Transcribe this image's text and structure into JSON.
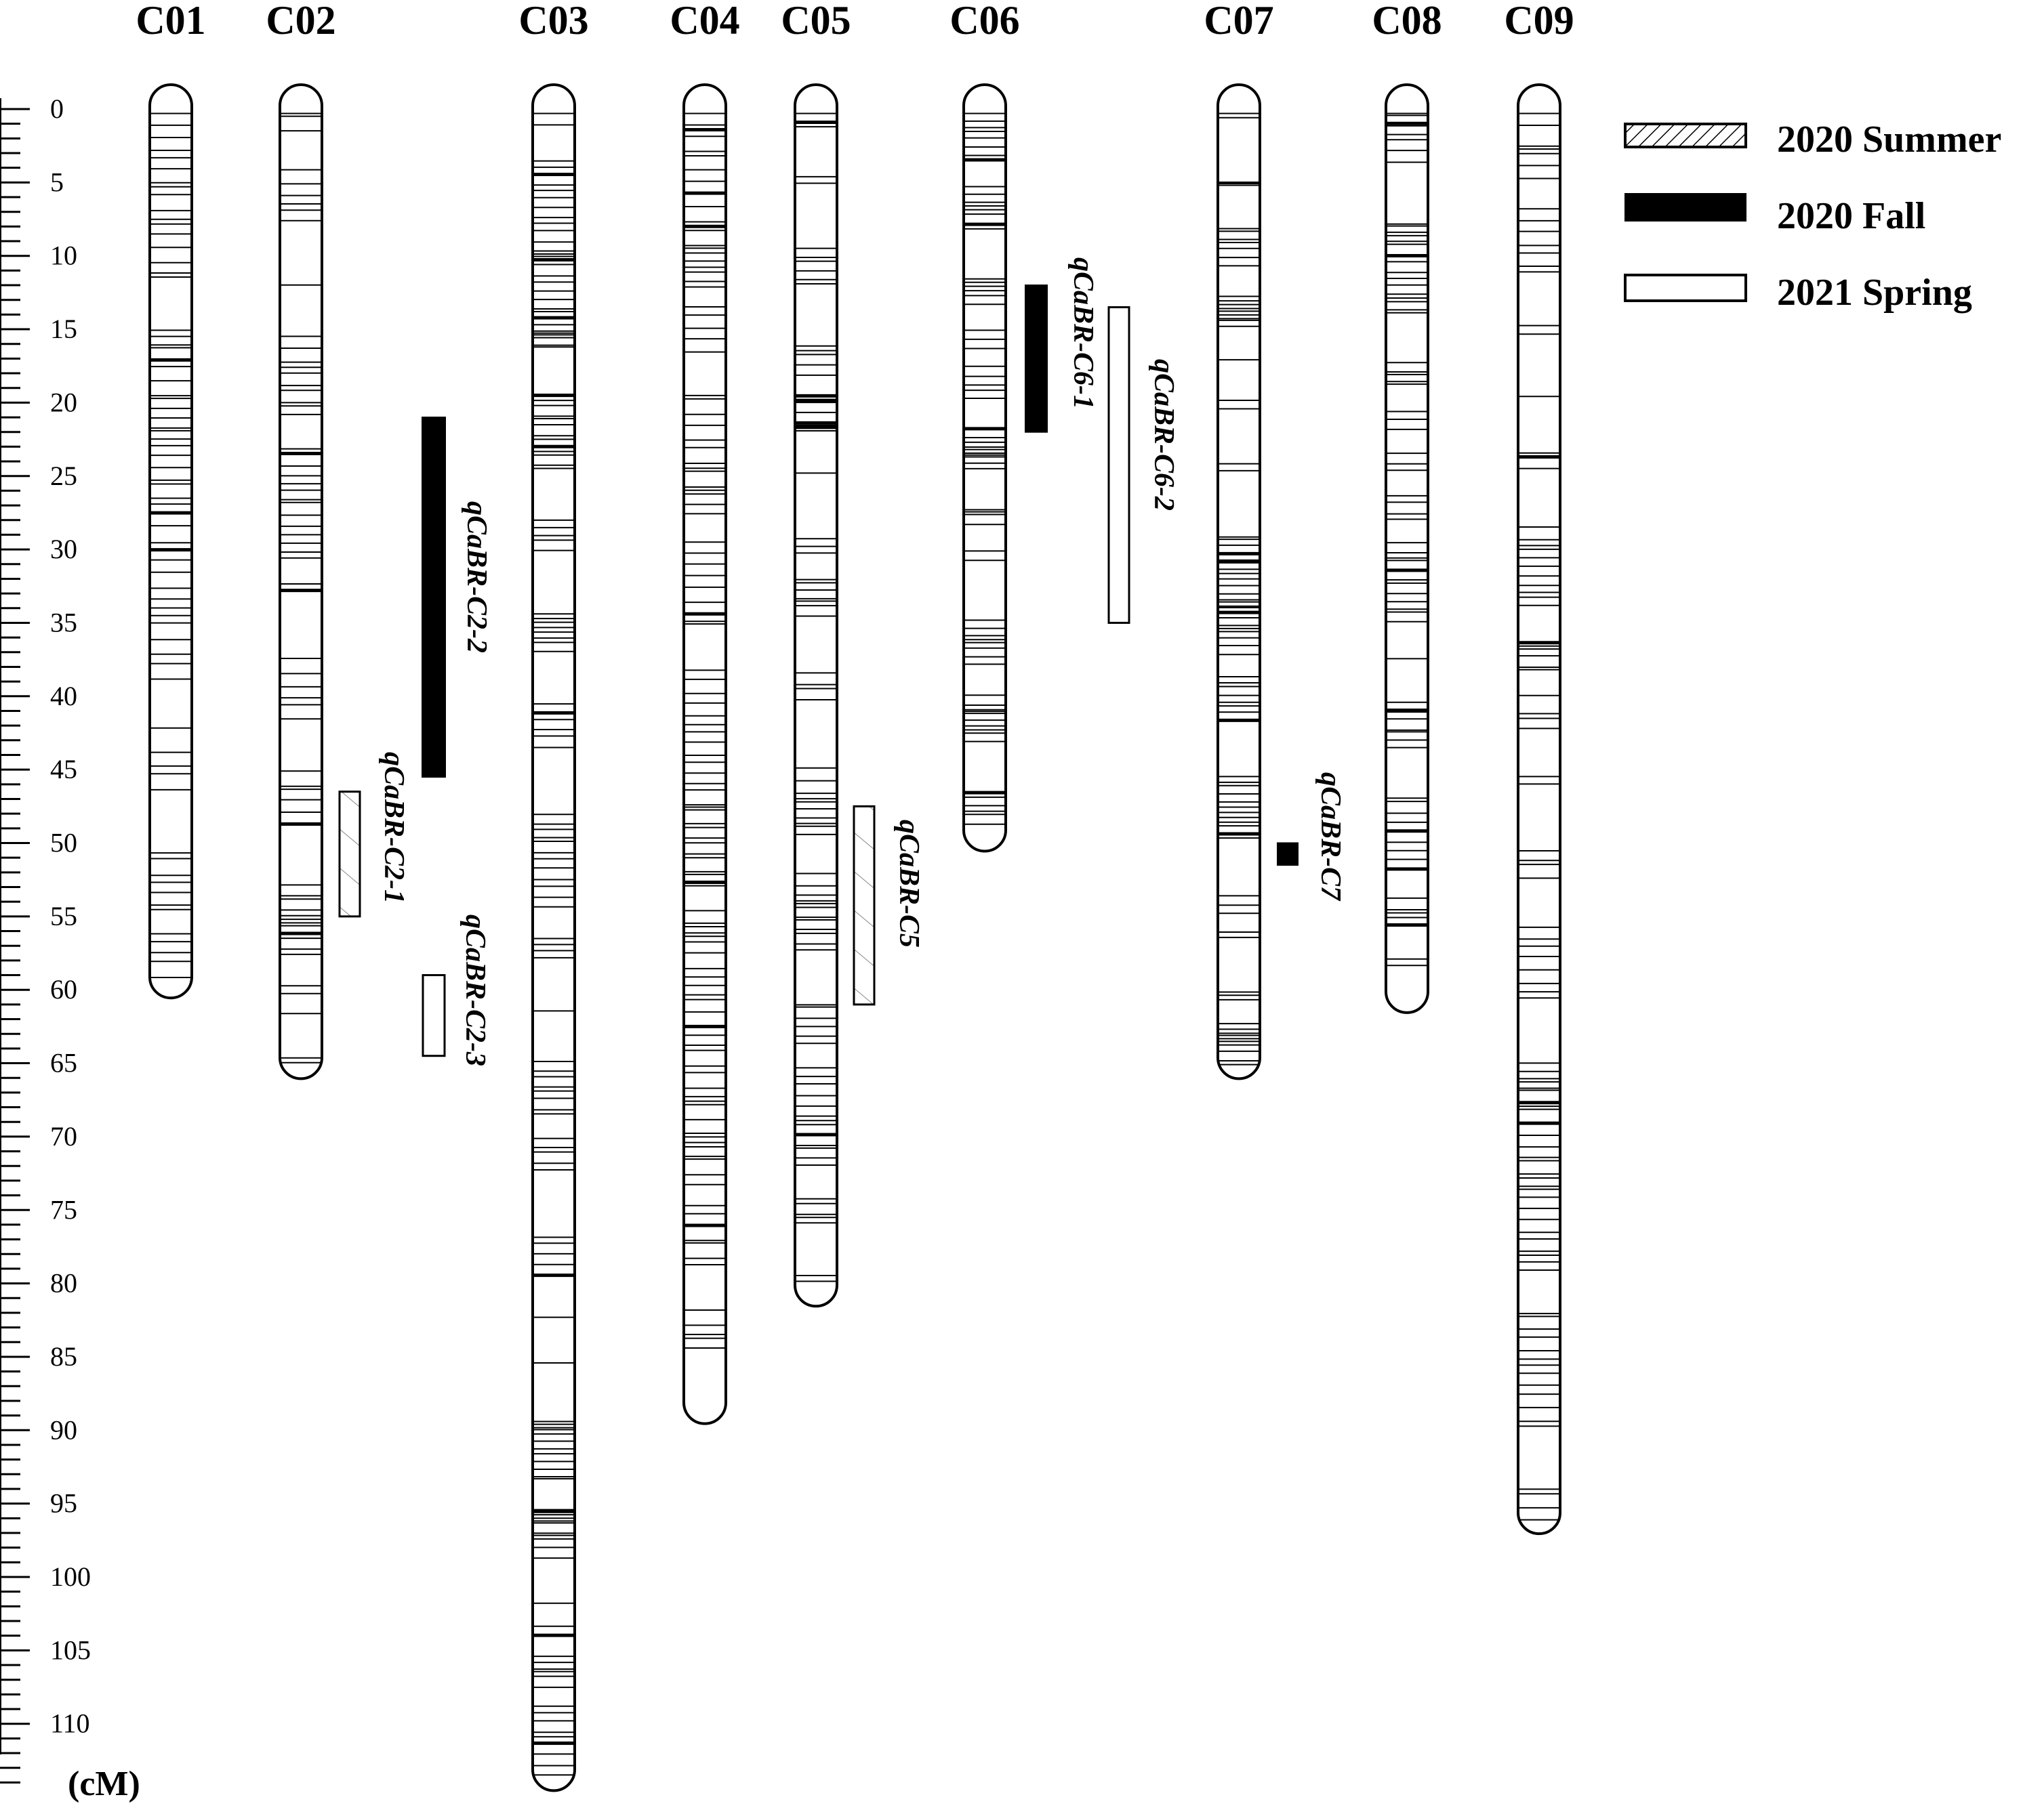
{
  "chromosomes": [
    {
      "name": "C01",
      "length": 60
    },
    {
      "name": "C02",
      "length": 65.5
    },
    {
      "name": "C03",
      "length": 114
    },
    {
      "name": "C04",
      "length": 89
    },
    {
      "name": "C05",
      "length": 81
    },
    {
      "name": "C06",
      "length": 50
    },
    {
      "name": "C07",
      "length": 65.5
    },
    {
      "name": "C08",
      "length": 61
    },
    {
      "name": "C09",
      "length": 96.5
    }
  ],
  "axis": {
    "unit": "(cM)",
    "ticks": [
      "0",
      "5",
      "10",
      "15",
      "20",
      "25",
      "30",
      "35",
      "40",
      "45",
      "50",
      "55",
      "60",
      "65",
      "70",
      "75",
      "80",
      "85",
      "90",
      "95",
      "100",
      "105",
      "110"
    ]
  },
  "qtls": [
    {
      "name": "qCaBR-C2-1",
      "chromosome": "C02",
      "start": 46.5,
      "end": 55,
      "season": "2020 Summer"
    },
    {
      "name": "qCaBR-C2-2",
      "chromosome": "C02",
      "start": 21,
      "end": 45.5,
      "season": "2020 Fall"
    },
    {
      "name": "qCaBR-C2-3",
      "chromosome": "C02",
      "start": 59,
      "end": 64.5,
      "season": "2021 Spring"
    },
    {
      "name": "qCaBR-C5",
      "chromosome": "C05",
      "start": 47.5,
      "end": 61,
      "season": "2020 Summer"
    },
    {
      "name": "qCaBR-C6-1",
      "chromosome": "C06",
      "start": 12,
      "end": 22,
      "season": "2020 Fall"
    },
    {
      "name": "qCaBR-C6-2",
      "chromosome": "C06",
      "start": 13.5,
      "end": 35,
      "season": "2021 Spring"
    },
    {
      "name": "qCaBR-C7",
      "chromosome": "C07",
      "start": 50,
      "end": 51.5,
      "season": "2020 Fall"
    }
  ],
  "legend": [
    {
      "label": "2020 Summer",
      "style": "hatched"
    },
    {
      "label": "2020 Fall",
      "style": "solid"
    },
    {
      "label": "2021 Spring",
      "style": "open"
    }
  ],
  "colors": {
    "stroke": "#000000",
    "fill_solid": "#000000",
    "background": "#ffffff"
  }
}
